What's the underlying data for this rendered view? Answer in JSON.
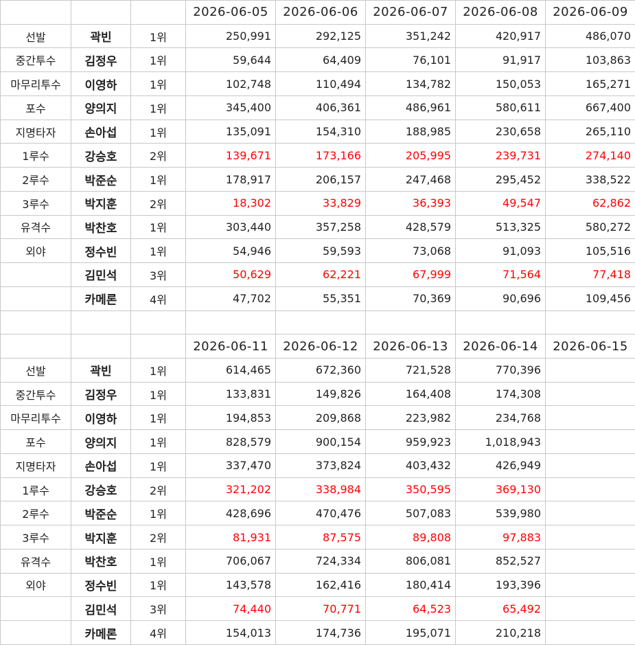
{
  "blocks": [
    {
      "dates": [
        "2026-06-05",
        "2026-06-06",
        "2026-06-07",
        "2026-06-08",
        "2026-06-09"
      ],
      "rows": [
        {
          "position": "선발",
          "name": "곽빈",
          "rank": "1위",
          "values": [
            "250,991",
            "292,125",
            "351,242",
            "420,917",
            "486,070"
          ]
        },
        {
          "position": "중간투수",
          "name": "김정우",
          "rank": "1위",
          "values": [
            "59,644",
            "64,409",
            "76,101",
            "91,917",
            "103,863"
          ]
        },
        {
          "position": "마무리투수",
          "name": "이영하",
          "rank": "1위",
          "values": [
            "102,748",
            "110,494",
            "134,782",
            "150,053",
            "165,271"
          ]
        },
        {
          "position": "포수",
          "name": "양의지",
          "rank": "1위",
          "values": [
            "345,400",
            "406,361",
            "486,961",
            "580,611",
            "667,400"
          ]
        },
        {
          "position": "지명타자",
          "name": "손아섭",
          "rank": "1위",
          "values": [
            "135,091",
            "154,310",
            "188,985",
            "230,658",
            "265,110"
          ]
        },
        {
          "position": "1루수",
          "name": "강승호",
          "rank": "2위",
          "color": "#ff0000",
          "values": [
            "139,671",
            "173,166",
            "205,995",
            "239,731",
            "274,140"
          ]
        },
        {
          "position": "2루수",
          "name": "박준순",
          "rank": "1위",
          "values": [
            "178,917",
            "206,157",
            "247,468",
            "295,452",
            "338,522"
          ]
        },
        {
          "position": "3루수",
          "name": "박지훈",
          "rank": "2위",
          "color": "#ff0000",
          "values": [
            "18,302",
            "33,829",
            "36,393",
            "49,547",
            "62,862"
          ]
        },
        {
          "position": "유격수",
          "name": "박찬호",
          "rank": "1위",
          "values": [
            "303,440",
            "357,258",
            "428,579",
            "513,325",
            "580,272"
          ]
        },
        {
          "position": "외야",
          "name": "정수빈",
          "rank": "1위",
          "values": [
            "54,946",
            "59,593",
            "73,068",
            "91,093",
            "105,516"
          ]
        },
        {
          "position": null,
          "name": "김민석",
          "rank": "3위",
          "color": "#ff0000",
          "values": [
            "50,629",
            "62,221",
            "67,999",
            "71,564",
            "77,418"
          ]
        },
        {
          "position": null,
          "name": "카메론",
          "rank": "4위",
          "values": [
            "47,702",
            "55,351",
            "70,369",
            "90,696",
            "109,456"
          ]
        }
      ]
    },
    {
      "dates": [
        "2026-06-11",
        "2026-06-12",
        "2026-06-13",
        "2026-06-14",
        "2026-06-15"
      ],
      "rows": [
        {
          "position": "선발",
          "name": "곽빈",
          "rank": "1위",
          "values": [
            "614,465",
            "672,360",
            "721,528",
            "770,396",
            null
          ]
        },
        {
          "position": "중간투수",
          "name": "김정우",
          "rank": "1위",
          "values": [
            "133,831",
            "149,826",
            "164,408",
            "174,308",
            null
          ]
        },
        {
          "position": "마무리투수",
          "name": "이영하",
          "rank": "1위",
          "values": [
            "194,853",
            "209,868",
            "223,982",
            "234,768",
            null
          ]
        },
        {
          "position": "포수",
          "name": "양의지",
          "rank": "1위",
          "values": [
            "828,579",
            "900,154",
            "959,923",
            "1,018,943",
            null
          ]
        },
        {
          "position": "지명타자",
          "name": "손아섭",
          "rank": "1위",
          "values": [
            "337,470",
            "373,824",
            "403,432",
            "426,949",
            null
          ]
        },
        {
          "position": "1루수",
          "name": "강승호",
          "rank": "2위",
          "color": "#ff0000",
          "values": [
            "321,202",
            "338,984",
            "350,595",
            "369,130",
            null
          ]
        },
        {
          "position": "2루수",
          "name": "박준순",
          "rank": "1위",
          "values": [
            "428,696",
            "470,476",
            "507,083",
            "539,980",
            null
          ]
        },
        {
          "position": "3루수",
          "name": "박지훈",
          "rank": "2위",
          "color": "#ff0000",
          "values": [
            "81,931",
            "87,575",
            "89,808",
            "97,883",
            null
          ]
        },
        {
          "position": "유격수",
          "name": "박찬호",
          "rank": "1위",
          "values": [
            "706,067",
            "724,334",
            "806,081",
            "852,527",
            null
          ]
        },
        {
          "position": "외야",
          "name": "정수빈",
          "rank": "1위",
          "values": [
            "143,578",
            "162,416",
            "180,414",
            "193,396",
            null
          ]
        },
        {
          "position": null,
          "name": "김민석",
          "rank": "3위",
          "color": "#ff0000",
          "values": [
            "74,440",
            "70,771",
            "64,523",
            "65,492",
            null
          ]
        },
        {
          "position": null,
          "name": "카메론",
          "rank": "4위",
          "values": [
            "154,013",
            "174,736",
            "195,071",
            "210,218",
            null
          ]
        }
      ]
    }
  ]
}
